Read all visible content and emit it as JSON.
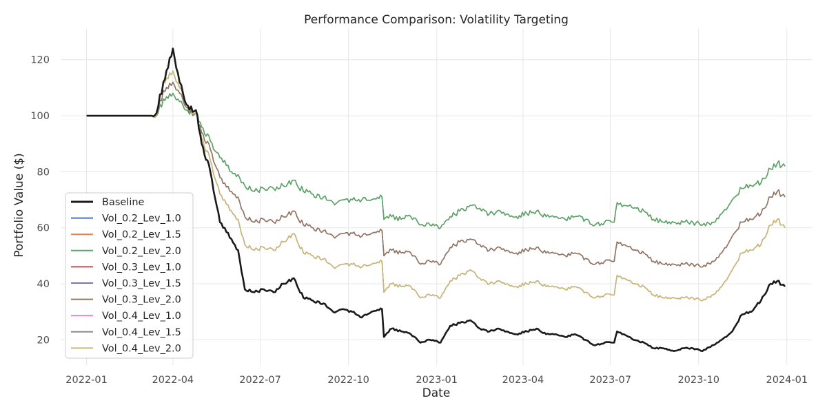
{
  "chart_data": {
    "type": "line",
    "title": "Performance Comparison: Volatility Targeting",
    "xlabel": "Date",
    "ylabel": "Portfolio Value ($)",
    "x_ticks": [
      "2022-01",
      "2022-04",
      "2022-07",
      "2022-10",
      "2023-01",
      "2023-04",
      "2023-07",
      "2023-10",
      "2024-01"
    ],
    "y_ticks": [
      20,
      40,
      60,
      80,
      100,
      120
    ],
    "xlim": [
      "2021-12-05",
      "2024-01-27"
    ],
    "ylim": [
      11,
      131
    ],
    "grid": true,
    "legend_position": "lower-left",
    "x": [
      "2022-01-01",
      "2022-03-10",
      "2022-03-15",
      "2022-03-22",
      "2022-04-01",
      "2022-04-08",
      "2022-04-15",
      "2022-04-25",
      "2022-05-01",
      "2022-05-10",
      "2022-05-20",
      "2022-05-25",
      "2022-06-01",
      "2022-06-08",
      "2022-06-15",
      "2022-06-25",
      "2022-07-05",
      "2022-07-15",
      "2022-07-25",
      "2022-08-05",
      "2022-08-15",
      "2022-08-25",
      "2022-09-05",
      "2022-09-15",
      "2022-09-25",
      "2022-10-05",
      "2022-10-15",
      "2022-10-25",
      "2022-11-05",
      "2022-11-07",
      "2022-11-15",
      "2022-11-25",
      "2022-12-05",
      "2022-12-15",
      "2022-12-25",
      "2023-01-05",
      "2023-01-15",
      "2023-01-25",
      "2023-02-05",
      "2023-02-15",
      "2023-02-25",
      "2023-03-05",
      "2023-03-15",
      "2023-03-25",
      "2023-04-05",
      "2023-04-15",
      "2023-04-25",
      "2023-05-05",
      "2023-05-15",
      "2023-05-25",
      "2023-06-05",
      "2023-06-15",
      "2023-06-25",
      "2023-07-05",
      "2023-07-08",
      "2023-07-15",
      "2023-07-25",
      "2023-08-05",
      "2023-08-15",
      "2023-08-25",
      "2023-09-05",
      "2023-09-15",
      "2023-09-25",
      "2023-10-05",
      "2023-10-15",
      "2023-10-25",
      "2023-11-05",
      "2023-11-15",
      "2023-11-25",
      "2023-12-05",
      "2023-12-15",
      "2023-12-22",
      "2023-12-30"
    ],
    "series": [
      {
        "name": "Baseline",
        "color": "#1a1a1a",
        "width": 2.6,
        "values": [
          100,
          100,
          101,
          112,
          124,
          112,
          104,
          102,
          90,
          80,
          62,
          60,
          56,
          52,
          38,
          37,
          38,
          37,
          40,
          42,
          35,
          34,
          33,
          30,
          31,
          30,
          28,
          30,
          31,
          21,
          24,
          23,
          22,
          19,
          20,
          19,
          25,
          26,
          27,
          24,
          23,
          24,
          23,
          22,
          23,
          24,
          22,
          22,
          21,
          22,
          20,
          18,
          19,
          19,
          23,
          22,
          20,
          19,
          17,
          17,
          16,
          17,
          17,
          16,
          18,
          20,
          23,
          29,
          30,
          34,
          40,
          41,
          39
        ]
      },
      {
        "name": "Vol_0.2_Lev_1.0",
        "color": "#4c72b0",
        "width": 1.5,
        "values": [
          100,
          100,
          100,
          106,
          108,
          105,
          102,
          101,
          96,
          91,
          85,
          84,
          80,
          79,
          75,
          73,
          74,
          74,
          75,
          77,
          73,
          72,
          71,
          69,
          70,
          70,
          70,
          70,
          71,
          63,
          64,
          63,
          64,
          61,
          61,
          60,
          64,
          66,
          68,
          67,
          65,
          66,
          65,
          64,
          65,
          66,
          64,
          64,
          63,
          64,
          63,
          61,
          62,
          62,
          69,
          68,
          67,
          66,
          63,
          62,
          62,
          62,
          62,
          61,
          62,
          65,
          70,
          74,
          75,
          76,
          81,
          83,
          82
        ]
      },
      {
        "name": "Vol_0.2_Lev_1.5",
        "color": "#dd8452",
        "width": 1.5,
        "values": [
          100,
          100,
          100,
          106,
          108,
          105,
          102,
          101,
          96,
          91,
          85,
          84,
          80,
          79,
          75,
          73,
          74,
          74,
          75,
          77,
          73,
          72,
          71,
          69,
          70,
          70,
          70,
          70,
          71,
          63,
          64,
          63,
          64,
          61,
          61,
          60,
          64,
          66,
          68,
          67,
          65,
          66,
          65,
          64,
          65,
          66,
          64,
          64,
          63,
          64,
          63,
          61,
          62,
          62,
          69,
          68,
          67,
          66,
          63,
          62,
          62,
          62,
          62,
          61,
          62,
          65,
          70,
          74,
          75,
          76,
          81,
          83,
          82
        ]
      },
      {
        "name": "Vol_0.2_Lev_2.0",
        "color": "#55a868",
        "width": 1.5,
        "values": [
          100,
          100,
          100,
          106,
          108,
          105,
          102,
          101,
          96,
          91,
          85,
          84,
          80,
          79,
          75,
          73,
          74,
          74,
          75,
          77,
          73,
          72,
          71,
          69,
          70,
          70,
          70,
          70,
          71,
          63,
          64,
          63,
          64,
          61,
          61,
          60,
          64,
          66,
          68,
          67,
          65,
          66,
          65,
          64,
          65,
          66,
          64,
          64,
          63,
          64,
          63,
          61,
          62,
          62,
          69,
          68,
          67,
          66,
          63,
          62,
          62,
          62,
          62,
          61,
          62,
          65,
          70,
          74,
          75,
          76,
          81,
          83,
          82
        ]
      },
      {
        "name": "Vol_0.3_Lev_1.0",
        "color": "#c44e52",
        "width": 1.5,
        "values": [
          100,
          100,
          100,
          109,
          112,
          108,
          103,
          101,
          94,
          88,
          78,
          76,
          73,
          71,
          64,
          62,
          63,
          62,
          64,
          66,
          61,
          60,
          59,
          57,
          58,
          58,
          57,
          58,
          59,
          50,
          52,
          51,
          51,
          47,
          48,
          47,
          53,
          55,
          56,
          54,
          52,
          53,
          52,
          51,
          52,
          53,
          51,
          51,
          50,
          51,
          49,
          47,
          48,
          48,
          55,
          54,
          52,
          51,
          48,
          47,
          47,
          47,
          47,
          46,
          48,
          51,
          57,
          62,
          63,
          65,
          71,
          73,
          71
        ]
      },
      {
        "name": "Vol_0.3_Lev_1.5",
        "color": "#8172b3",
        "width": 1.5,
        "values": [
          100,
          100,
          100,
          109,
          112,
          108,
          103,
          101,
          94,
          88,
          78,
          76,
          73,
          71,
          64,
          62,
          63,
          62,
          64,
          66,
          61,
          60,
          59,
          57,
          58,
          58,
          57,
          58,
          59,
          50,
          52,
          51,
          51,
          47,
          48,
          47,
          53,
          55,
          56,
          54,
          52,
          53,
          52,
          51,
          52,
          53,
          51,
          51,
          50,
          51,
          49,
          47,
          48,
          48,
          55,
          54,
          52,
          51,
          48,
          47,
          47,
          47,
          47,
          46,
          48,
          51,
          57,
          62,
          63,
          65,
          71,
          73,
          71
        ]
      },
      {
        "name": "Vol_0.3_Lev_2.0",
        "color": "#937860",
        "width": 1.5,
        "values": [
          100,
          100,
          100,
          109,
          112,
          108,
          103,
          101,
          94,
          88,
          78,
          76,
          73,
          71,
          64,
          62,
          63,
          62,
          64,
          66,
          61,
          60,
          59,
          57,
          58,
          58,
          57,
          58,
          59,
          50,
          52,
          51,
          51,
          47,
          48,
          47,
          53,
          55,
          56,
          54,
          52,
          53,
          52,
          51,
          52,
          53,
          51,
          51,
          50,
          51,
          49,
          47,
          48,
          48,
          55,
          54,
          52,
          51,
          48,
          47,
          47,
          47,
          47,
          46,
          48,
          51,
          57,
          62,
          63,
          65,
          71,
          73,
          71
        ]
      },
      {
        "name": "Vol_0.4_Lev_1.0",
        "color": "#da8bc3",
        "width": 1.5,
        "values": [
          100,
          100,
          100,
          112,
          116,
          110,
          104,
          101,
          92,
          84,
          72,
          70,
          66,
          63,
          54,
          52,
          53,
          52,
          55,
          58,
          51,
          50,
          49,
          46,
          47,
          47,
          46,
          47,
          48,
          37,
          40,
          39,
          39,
          35,
          36,
          35,
          41,
          43,
          45,
          42,
          40,
          41,
          40,
          39,
          40,
          41,
          39,
          39,
          38,
          39,
          37,
          35,
          36,
          36,
          43,
          42,
          40,
          39,
          36,
          35,
          35,
          35,
          35,
          34,
          36,
          39,
          45,
          51,
          52,
          54,
          61,
          63,
          60
        ]
      },
      {
        "name": "Vol_0.4_Lev_1.5",
        "color": "#8c8c8c",
        "width": 1.5,
        "values": [
          100,
          100,
          100,
          112,
          116,
          110,
          104,
          101,
          92,
          84,
          72,
          70,
          66,
          63,
          54,
          52,
          53,
          52,
          55,
          58,
          51,
          50,
          49,
          46,
          47,
          47,
          46,
          47,
          48,
          37,
          40,
          39,
          39,
          35,
          36,
          35,
          41,
          43,
          45,
          42,
          40,
          41,
          40,
          39,
          40,
          41,
          39,
          39,
          38,
          39,
          37,
          35,
          36,
          36,
          43,
          42,
          40,
          39,
          36,
          35,
          35,
          35,
          35,
          34,
          36,
          39,
          45,
          51,
          52,
          54,
          61,
          63,
          60
        ]
      },
      {
        "name": "Vol_0.4_Lev_2.0",
        "color": "#ccb974",
        "width": 1.5,
        "values": [
          100,
          100,
          100,
          112,
          116,
          110,
          104,
          101,
          92,
          84,
          72,
          70,
          66,
          63,
          54,
          52,
          53,
          52,
          55,
          58,
          51,
          50,
          49,
          46,
          47,
          47,
          46,
          47,
          48,
          37,
          40,
          39,
          39,
          35,
          36,
          35,
          41,
          43,
          45,
          42,
          40,
          41,
          40,
          39,
          40,
          41,
          39,
          39,
          38,
          39,
          37,
          35,
          36,
          36,
          43,
          42,
          40,
          39,
          36,
          35,
          35,
          35,
          35,
          34,
          36,
          39,
          45,
          51,
          52,
          54,
          61,
          63,
          60
        ]
      }
    ]
  }
}
